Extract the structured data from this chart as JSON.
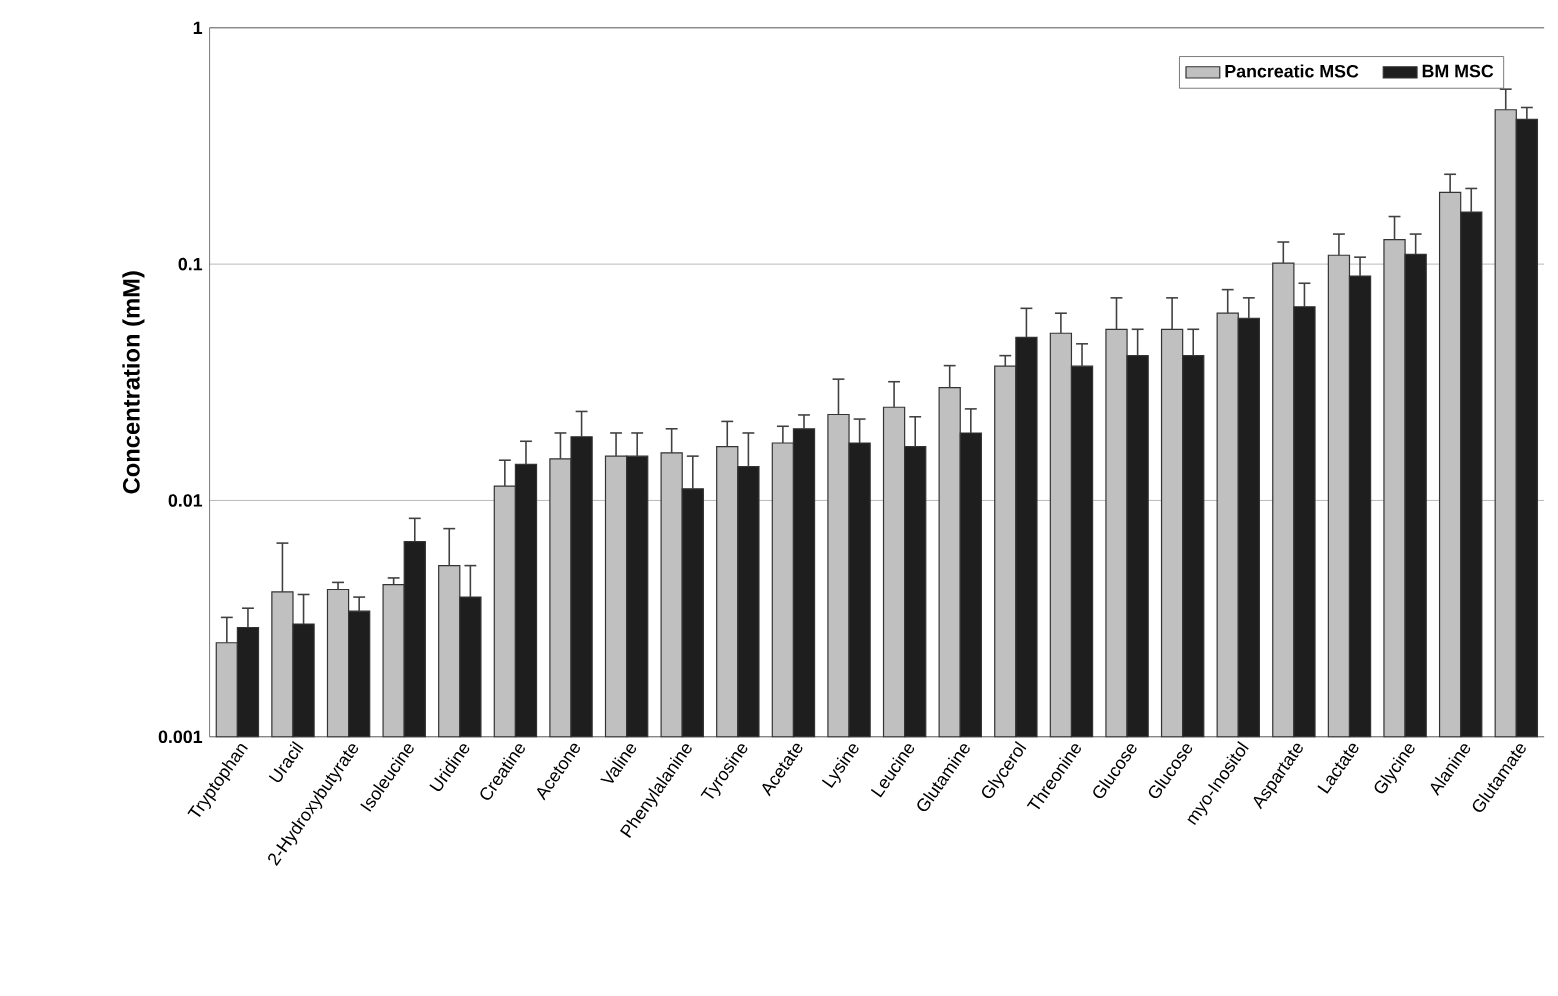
{
  "chart_data": {
    "type": "bar",
    "ylabel": "Concentration (mM)",
    "log": "y",
    "grid": "y",
    "legend": "top right",
    "ylim": [
      0.001,
      1
    ],
    "yticks": [
      0.001,
      0.01,
      0.1,
      1
    ],
    "categories": [
      "Tryptophan",
      "Uracil",
      "2-Hydroxybutyrate",
      "Isoleucine",
      "Uridine",
      "Creatine",
      "Acetone",
      "Valine",
      "Phenylalanine",
      "Tyrosine",
      "Acetate",
      "Lysine",
      "Leucine",
      "Glutamine",
      "Glycerol",
      "Threonine",
      "Glucose",
      "Glucose",
      "myo-Inositol",
      "Aspartate",
      "Lactate",
      "Glycine",
      "Alanine",
      "Glutamate"
    ],
    "series": [
      {
        "name": "Pancreatic MSC",
        "color": "#c0c0c0",
        "values": [
          0.0025,
          0.0041,
          0.0042,
          0.0044,
          0.0053,
          0.0115,
          0.015,
          0.0154,
          0.0159,
          0.0169,
          0.0175,
          0.0231,
          0.0248,
          0.03,
          0.037,
          0.051,
          0.053,
          0.053,
          0.062,
          0.101,
          0.109,
          0.127,
          0.201,
          0.45
        ],
        "errors": [
          [
            0.0025,
            0.0032
          ],
          [
            0.0041,
            0.0066
          ],
          [
            0.0042,
            0.0045
          ],
          [
            0.0044,
            0.0047
          ],
          [
            0.0053,
            0.0076
          ],
          [
            0.0115,
            0.0148
          ],
          [
            0.015,
            0.0193
          ],
          [
            0.0154,
            0.0193
          ],
          [
            0.0159,
            0.0201
          ],
          [
            0.0169,
            0.0216
          ],
          [
            0.0175,
            0.0206
          ],
          [
            0.0231,
            0.0326
          ],
          [
            0.0248,
            0.0318
          ],
          [
            0.03,
            0.0372
          ],
          [
            0.037,
            0.041
          ],
          [
            0.051,
            0.062
          ],
          [
            0.053,
            0.072
          ],
          [
            0.053,
            0.072
          ],
          [
            0.062,
            0.078
          ],
          [
            0.101,
            0.124
          ],
          [
            0.109,
            0.134
          ],
          [
            0.127,
            0.159
          ],
          [
            0.201,
            0.24
          ],
          [
            0.45,
            0.55
          ]
        ]
      },
      {
        "name": "BM MSC",
        "color": "#1e1e1e",
        "values": [
          0.0029,
          0.003,
          0.0034,
          0.0067,
          0.0039,
          0.0142,
          0.0186,
          0.0154,
          0.0112,
          0.0139,
          0.0201,
          0.0175,
          0.0169,
          0.0193,
          0.049,
          0.037,
          0.041,
          0.041,
          0.059,
          0.066,
          0.089,
          0.11,
          0.166,
          0.41
        ],
        "errors": [
          [
            0.0029,
            0.0035
          ],
          [
            0.003,
            0.004
          ],
          [
            0.0034,
            0.0039
          ],
          [
            0.0067,
            0.0084
          ],
          [
            0.0039,
            0.0053
          ],
          [
            0.0142,
            0.0178
          ],
          [
            0.0186,
            0.0238
          ],
          [
            0.0154,
            0.0193
          ],
          [
            0.0112,
            0.0154
          ],
          [
            0.0139,
            0.0193
          ],
          [
            0.0201,
            0.023
          ],
          [
            0.0175,
            0.0221
          ],
          [
            0.0169,
            0.0226
          ],
          [
            0.0193,
            0.0244
          ],
          [
            0.049,
            0.065
          ],
          [
            0.037,
            0.046
          ],
          [
            0.041,
            0.053
          ],
          [
            0.041,
            0.053
          ],
          [
            0.059,
            0.072
          ],
          [
            0.066,
            0.083
          ],
          [
            0.089,
            0.107
          ],
          [
            0.11,
            0.134
          ],
          [
            0.166,
            0.209
          ],
          [
            0.41,
            0.46
          ]
        ]
      }
    ]
  }
}
